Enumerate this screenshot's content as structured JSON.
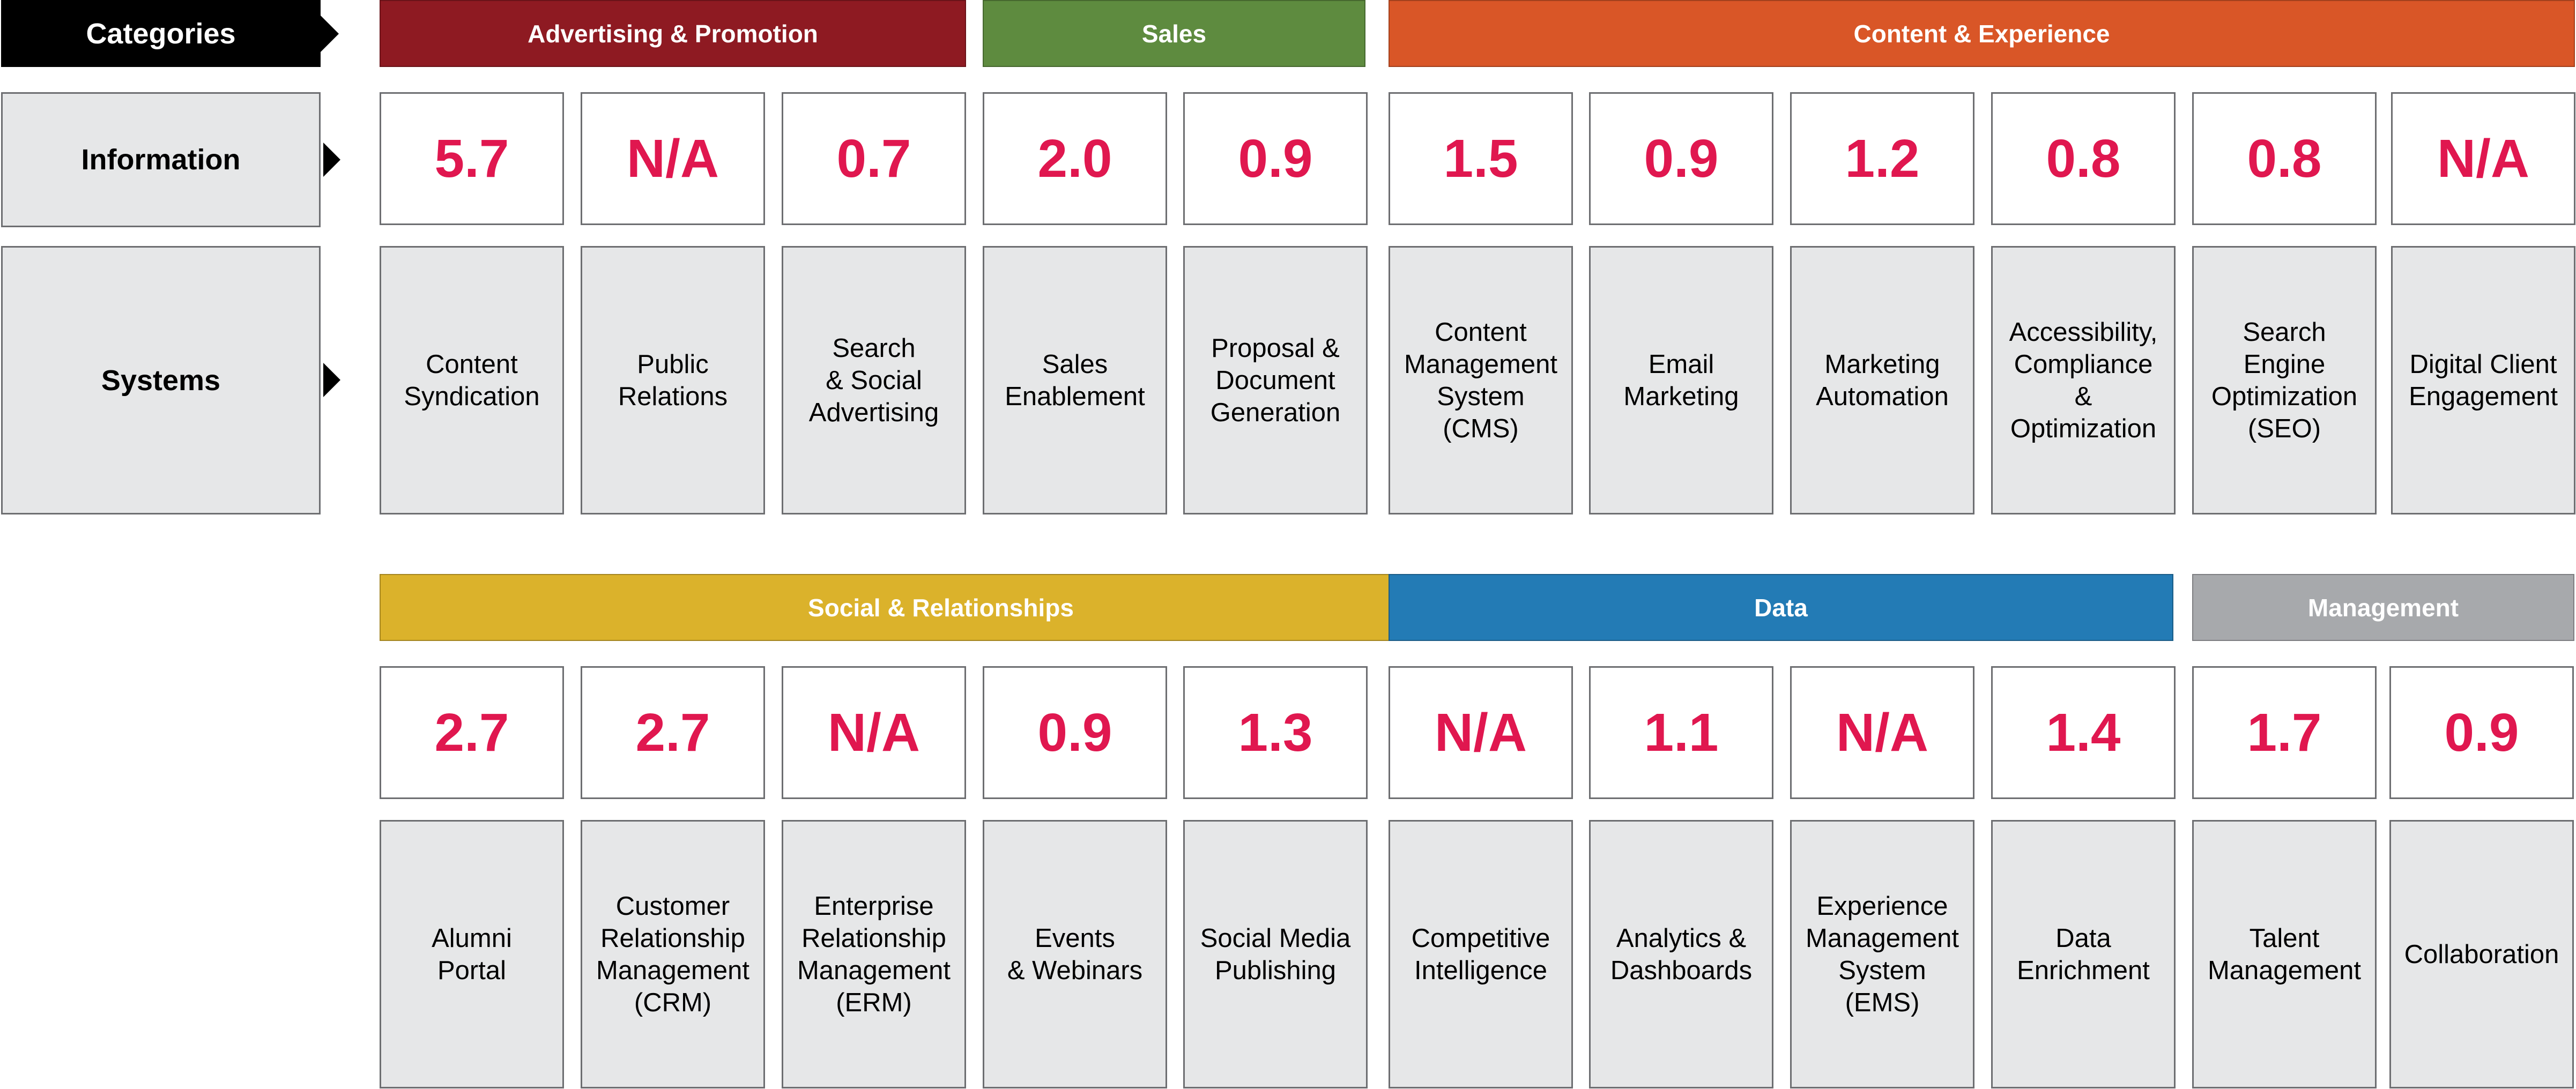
{
  "side": {
    "categories": "Categories",
    "information": "Information",
    "systems": "Systems"
  },
  "bands": {
    "advertising": "Advertising & Promotion",
    "sales": "Sales",
    "content": "Content & Experience",
    "social": "Social & Relationships",
    "data": "Data",
    "management": "Management"
  },
  "colors": {
    "advertising": "#8e1a22",
    "sales": "#5e8b3f",
    "content": "#d95627",
    "social": "#dbb22b",
    "data": "#237bb5",
    "management": "#a7a9ac",
    "value_text": "#e0174f"
  },
  "top_values": [
    "5.7",
    "N/A",
    "0.7",
    "2.0",
    "0.9",
    "1.5",
    "0.9",
    "1.2",
    "0.8",
    "0.8",
    "N/A"
  ],
  "top_systems": [
    "Content\nSyndication",
    "Public\nRelations",
    "Search\n& Social\nAdvertising",
    "Sales\nEnablement",
    "Proposal &\nDocument\nGeneration",
    "Content\nManagement\nSystem\n(CMS)",
    "Email\nMarketing",
    "Marketing\nAutomation",
    "Accessibility,\nCompliance\n& Optimization",
    "Search\nEngine\nOptimization\n(SEO)",
    "Digital Client\nEngagement"
  ],
  "bottom_values": [
    "2.7",
    "2.7",
    "N/A",
    "0.9",
    "1.3",
    "N/A",
    "1.1",
    "N/A",
    "1.4",
    "1.7",
    "0.9"
  ],
  "bottom_systems": [
    "Alumni\nPortal",
    "Customer\nRelationship\nManagement\n(CRM)",
    "Enterprise\nRelationship\nManagement\n(ERM)",
    "Events\n& Webinars",
    "Social Media\nPublishing",
    "Competitive\nIntelligence",
    "Analytics &\nDashboards",
    "Experience\nManagement\nSystem\n(EMS)",
    "Data\nEnrichment",
    "Talent\nManagement",
    "Collaboration"
  ]
}
